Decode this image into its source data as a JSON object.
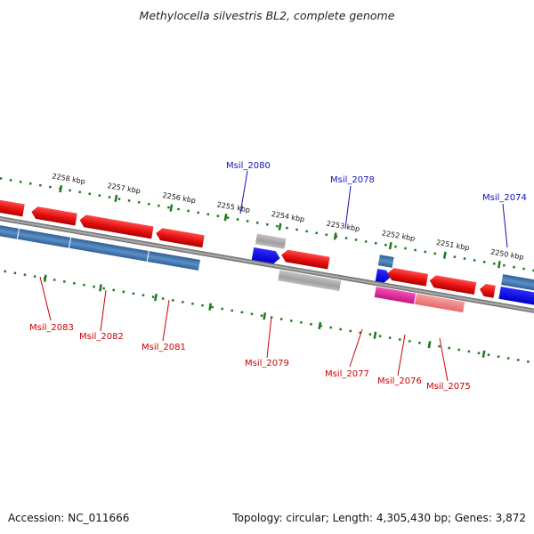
{
  "title": "Methylocella silvestris BL2, complete genome",
  "footer": {
    "accession": "Accession: NC_011666",
    "summary": "Topology: circular; Length: 4,305,430 bp; Genes: 3,872"
  },
  "colors": {
    "backbone": "#8c8c8c",
    "tick": "#1f7a1f",
    "forward_cds": "#e41010",
    "reverse_cds": "#3a74b0",
    "forward_other": "#1010e0",
    "gray_feature": "#a8a8a8",
    "pink_feature": "#e0209a",
    "light_red_feature": "#f08080",
    "label_forward": "#1010c0",
    "label_reverse": "#cc0000"
  },
  "scale_labels": [
    "2258 kbp",
    "2257 kbp",
    "2256 kbp",
    "2255 kbp",
    "2254 kbp",
    "2253 kbp",
    "2252 kbp",
    "2251 kbp",
    "2250 kbp"
  ],
  "gene_labels_top": [
    "Msil_2080",
    "Msil_2078",
    "Msil_2074"
  ],
  "gene_labels_bottom": [
    "Msil_2083",
    "Msil_2082",
    "Msil_2081",
    "Msil_2079",
    "Msil_2077",
    "Msil_2076",
    "Msil_2075"
  ]
}
